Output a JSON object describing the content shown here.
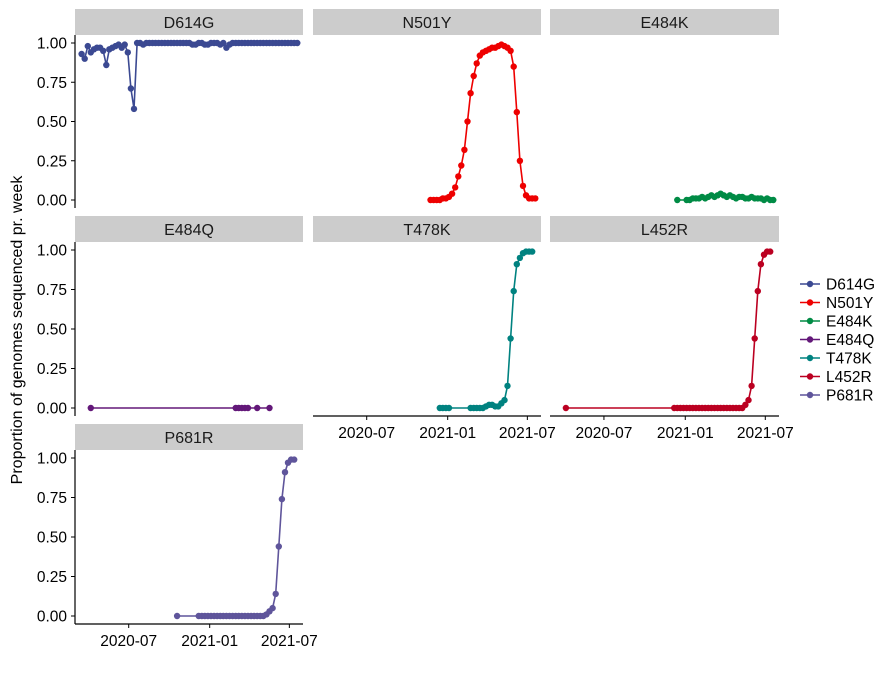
{
  "chart_data": {
    "type": "line",
    "ylabel": "Proportion of genomes sequenced pr. week",
    "ylim": [
      0,
      1
    ],
    "y_ticks": [
      "0.00",
      "0.25",
      "0.50",
      "0.75",
      "1.00"
    ],
    "x_ticks": [
      "2020-07",
      "2021-01",
      "2021-07"
    ],
    "xlim": [
      "2020-03-01",
      "2021-08-01"
    ],
    "legend_position": "right",
    "series": [
      {
        "name": "D614G",
        "color": "#3B4992",
        "x": [
          "2020-03-16",
          "2020-03-23",
          "2020-03-30",
          "2020-04-06",
          "2020-04-13",
          "2020-04-20",
          "2020-04-27",
          "2020-05-04",
          "2020-05-11",
          "2020-05-18",
          "2020-05-25",
          "2020-06-01",
          "2020-06-08",
          "2020-06-15",
          "2020-06-22",
          "2020-06-29",
          "2020-07-06",
          "2020-07-13",
          "2020-07-20",
          "2020-07-27",
          "2020-08-03",
          "2020-08-10",
          "2020-08-17",
          "2020-08-24",
          "2020-08-31",
          "2020-09-07",
          "2020-09-14",
          "2020-09-21",
          "2020-09-28",
          "2020-10-05",
          "2020-10-12",
          "2020-10-19",
          "2020-10-26",
          "2020-11-02",
          "2020-11-09",
          "2020-11-16",
          "2020-11-23",
          "2020-11-30",
          "2020-12-07",
          "2020-12-14",
          "2020-12-21",
          "2020-12-28",
          "2021-01-04",
          "2021-01-11",
          "2021-01-18",
          "2021-01-25",
          "2021-02-01",
          "2021-02-08",
          "2021-02-15",
          "2021-02-22",
          "2021-03-01",
          "2021-03-08",
          "2021-03-15",
          "2021-03-22",
          "2021-03-29",
          "2021-04-05",
          "2021-04-12",
          "2021-04-19",
          "2021-04-26",
          "2021-05-03",
          "2021-05-10",
          "2021-05-17",
          "2021-05-24",
          "2021-05-31",
          "2021-06-07",
          "2021-06-14",
          "2021-06-21",
          "2021-06-28",
          "2021-07-05",
          "2021-07-12",
          "2021-07-19"
        ],
        "values": [
          0.93,
          0.9,
          0.98,
          0.94,
          0.96,
          0.97,
          0.97,
          0.95,
          0.86,
          0.96,
          0.97,
          0.98,
          0.99,
          0.97,
          0.99,
          0.94,
          0.71,
          0.58,
          1.0,
          1.0,
          0.99,
          1.0,
          1.0,
          1.0,
          1.0,
          1.0,
          1.0,
          1.0,
          1.0,
          1.0,
          1.0,
          1.0,
          1.0,
          1.0,
          1.0,
          1.0,
          0.99,
          0.99,
          1.0,
          1.0,
          0.99,
          0.99,
          1.0,
          1.0,
          1.0,
          0.99,
          1.0,
          0.97,
          0.99,
          1.0,
          1.0,
          1.0,
          1.0,
          1.0,
          1.0,
          1.0,
          1.0,
          1.0,
          1.0,
          1.0,
          1.0,
          1.0,
          1.0,
          1.0,
          1.0,
          1.0,
          1.0,
          1.0,
          1.0,
          1.0,
          1.0
        ]
      },
      {
        "name": "N501Y",
        "color": "#EE0000",
        "x": [
          "2020-11-23",
          "2020-11-30",
          "2020-12-07",
          "2020-12-14",
          "2020-12-21",
          "2020-12-28",
          "2021-01-04",
          "2021-01-11",
          "2021-01-18",
          "2021-01-25",
          "2021-02-01",
          "2021-02-08",
          "2021-02-15",
          "2021-02-22",
          "2021-03-01",
          "2021-03-08",
          "2021-03-15",
          "2021-03-22",
          "2021-03-29",
          "2021-04-05",
          "2021-04-12",
          "2021-04-19",
          "2021-04-26",
          "2021-05-03",
          "2021-05-10",
          "2021-05-17",
          "2021-05-24",
          "2021-05-31",
          "2021-06-07",
          "2021-06-14",
          "2021-06-21",
          "2021-06-28",
          "2021-07-05",
          "2021-07-12",
          "2021-07-19"
        ],
        "values": [
          0.0,
          0.0,
          0.0,
          0.0,
          0.01,
          0.01,
          0.02,
          0.04,
          0.08,
          0.15,
          0.22,
          0.32,
          0.5,
          0.68,
          0.79,
          0.87,
          0.92,
          0.94,
          0.95,
          0.96,
          0.97,
          0.97,
          0.98,
          0.99,
          0.98,
          0.97,
          0.95,
          0.85,
          0.56,
          0.25,
          0.09,
          0.03,
          0.01,
          0.01,
          0.01
        ]
      },
      {
        "name": "E484K",
        "color": "#008B45",
        "x": [
          "2020-12-14",
          "2021-01-04",
          "2021-01-11",
          "2021-01-18",
          "2021-01-25",
          "2021-02-01",
          "2021-02-08",
          "2021-02-15",
          "2021-02-22",
          "2021-03-01",
          "2021-03-08",
          "2021-03-15",
          "2021-03-22",
          "2021-03-29",
          "2021-04-05",
          "2021-04-12",
          "2021-04-19",
          "2021-04-26",
          "2021-05-03",
          "2021-05-10",
          "2021-05-17",
          "2021-05-24",
          "2021-05-31",
          "2021-06-07",
          "2021-06-14",
          "2021-06-21",
          "2021-06-28",
          "2021-07-05",
          "2021-07-12",
          "2021-07-19"
        ],
        "values": [
          0.0,
          0.0,
          0.0,
          0.01,
          0.01,
          0.01,
          0.02,
          0.01,
          0.02,
          0.03,
          0.02,
          0.03,
          0.04,
          0.03,
          0.02,
          0.03,
          0.02,
          0.01,
          0.02,
          0.02,
          0.01,
          0.01,
          0.02,
          0.01,
          0.01,
          0.01,
          0.0,
          0.01,
          0.0,
          0.0
        ]
      },
      {
        "name": "E484Q",
        "color": "#631879",
        "x": [
          "2020-04-06",
          "2021-03-01",
          "2021-03-08",
          "2021-03-15",
          "2021-03-22",
          "2021-03-29",
          "2021-04-19",
          "2021-05-17"
        ],
        "values": [
          0.0,
          0.0,
          0.0,
          0.0,
          0.0,
          0.0,
          0.0,
          0.0
        ]
      },
      {
        "name": "T478K",
        "color": "#008280",
        "x": [
          "2020-12-14",
          "2020-12-21",
          "2020-12-28",
          "2021-01-04",
          "2021-02-22",
          "2021-03-01",
          "2021-03-08",
          "2021-03-15",
          "2021-03-22",
          "2021-03-29",
          "2021-04-05",
          "2021-04-12",
          "2021-04-19",
          "2021-04-26",
          "2021-05-03",
          "2021-05-10",
          "2021-05-17",
          "2021-05-24",
          "2021-05-31",
          "2021-06-07",
          "2021-06-14",
          "2021-06-21",
          "2021-06-28",
          "2021-07-05",
          "2021-07-12"
        ],
        "values": [
          0.0,
          0.0,
          0.0,
          0.0,
          0.0,
          0.0,
          0.0,
          0.0,
          0.0,
          0.01,
          0.02,
          0.02,
          0.01,
          0.01,
          0.03,
          0.05,
          0.14,
          0.44,
          0.74,
          0.91,
          0.95,
          0.98,
          0.99,
          0.99,
          0.99
        ]
      },
      {
        "name": "L452R",
        "color": "#BB0021",
        "x": [
          "2020-04-06",
          "2020-12-07",
          "2020-12-14",
          "2020-12-21",
          "2020-12-28",
          "2021-01-04",
          "2021-01-11",
          "2021-01-18",
          "2021-01-25",
          "2021-02-01",
          "2021-02-08",
          "2021-02-15",
          "2021-02-22",
          "2021-03-01",
          "2021-03-08",
          "2021-03-15",
          "2021-03-22",
          "2021-03-29",
          "2021-04-05",
          "2021-04-12",
          "2021-04-19",
          "2021-04-26",
          "2021-05-03",
          "2021-05-10",
          "2021-05-17",
          "2021-05-24",
          "2021-05-31",
          "2021-06-07",
          "2021-06-14",
          "2021-06-21",
          "2021-06-28",
          "2021-07-05",
          "2021-07-12"
        ],
        "values": [
          0.0,
          0.0,
          0.0,
          0.0,
          0.0,
          0.0,
          0.0,
          0.0,
          0.0,
          0.0,
          0.0,
          0.0,
          0.0,
          0.0,
          0.0,
          0.0,
          0.0,
          0.0,
          0.0,
          0.0,
          0.0,
          0.0,
          0.0,
          0.0,
          0.02,
          0.05,
          0.14,
          0.44,
          0.74,
          0.91,
          0.97,
          0.99,
          0.99
        ]
      },
      {
        "name": "P681R",
        "color": "#5F559B",
        "x": [
          "2020-10-19",
          "2020-12-07",
          "2020-12-14",
          "2020-12-21",
          "2020-12-28",
          "2021-01-04",
          "2021-01-11",
          "2021-01-18",
          "2021-01-25",
          "2021-02-01",
          "2021-02-08",
          "2021-02-15",
          "2021-02-22",
          "2021-03-01",
          "2021-03-08",
          "2021-03-15",
          "2021-03-22",
          "2021-03-29",
          "2021-04-05",
          "2021-04-12",
          "2021-04-19",
          "2021-04-26",
          "2021-05-03",
          "2021-05-10",
          "2021-05-17",
          "2021-05-24",
          "2021-05-31",
          "2021-06-07",
          "2021-06-14",
          "2021-06-21",
          "2021-06-28",
          "2021-07-05",
          "2021-07-12"
        ],
        "values": [
          0.0,
          0.0,
          0.0,
          0.0,
          0.0,
          0.0,
          0.0,
          0.0,
          0.0,
          0.0,
          0.0,
          0.0,
          0.0,
          0.0,
          0.0,
          0.0,
          0.0,
          0.0,
          0.0,
          0.0,
          0.0,
          0.0,
          0.0,
          0.01,
          0.03,
          0.05,
          0.14,
          0.44,
          0.74,
          0.91,
          0.97,
          0.99,
          0.99
        ]
      }
    ]
  }
}
